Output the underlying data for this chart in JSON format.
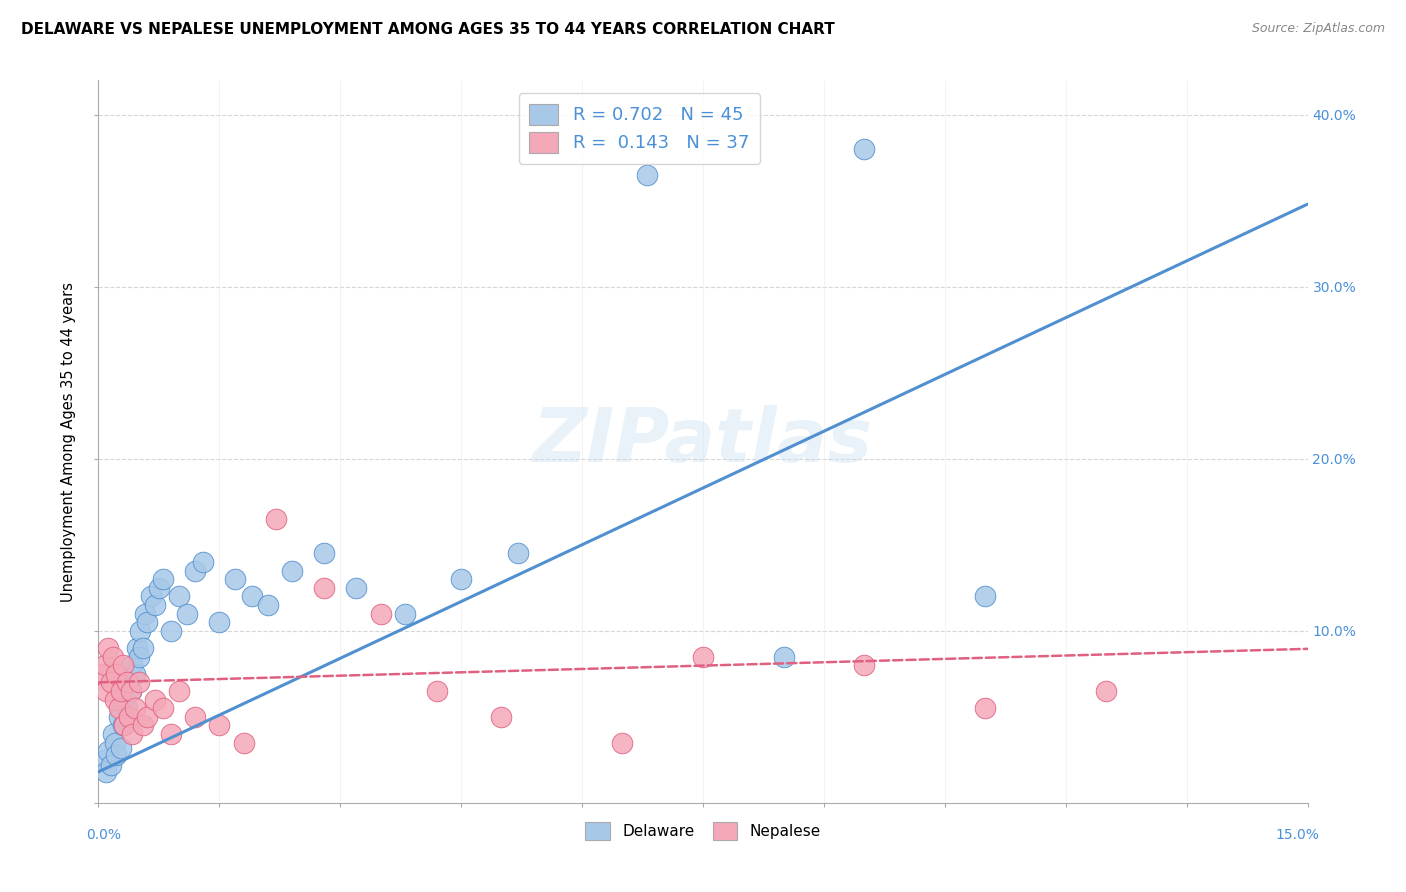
{
  "title": "DELAWARE VS NEPALESE UNEMPLOYMENT AMONG AGES 35 TO 44 YEARS CORRELATION CHART",
  "source": "Source: ZipAtlas.com",
  "ylabel": "Unemployment Among Ages 35 to 44 years",
  "xlim": [
    0.0,
    15.0
  ],
  "ylim": [
    0.0,
    42.0
  ],
  "watermark": "ZIPatlas",
  "delaware_R": 0.702,
  "delaware_N": 45,
  "nepalese_R": 0.143,
  "nepalese_N": 37,
  "delaware_color": "#a8c8e8",
  "nepalese_color": "#f4a8b8",
  "delaware_line_color": "#5090d0",
  "nepalese_line_color": "#e06080",
  "legend_text_color": "#4a90d9",
  "axis_label_color": "#4a90d9",
  "background": "#ffffff",
  "grid_color_h": "#cccccc",
  "grid_color_v": "#e8e8e8",
  "del_x": [
    0.08,
    0.1,
    0.12,
    0.15,
    0.18,
    0.2,
    0.22,
    0.25,
    0.28,
    0.3,
    0.32,
    0.35,
    0.38,
    0.4,
    0.42,
    0.45,
    0.48,
    0.5,
    0.52,
    0.55,
    0.58,
    0.6,
    0.65,
    0.7,
    0.75,
    0.8,
    0.9,
    1.0,
    1.1,
    1.2,
    1.3,
    1.5,
    1.7,
    1.9,
    2.1,
    2.4,
    2.8,
    3.2,
    3.8,
    4.5,
    5.2,
    6.8,
    8.5,
    9.5,
    11.0
  ],
  "del_y": [
    2.5,
    1.8,
    3.0,
    2.2,
    4.0,
    3.5,
    2.8,
    5.0,
    3.2,
    4.5,
    6.0,
    5.5,
    7.0,
    6.5,
    8.0,
    7.5,
    9.0,
    8.5,
    10.0,
    9.0,
    11.0,
    10.5,
    12.0,
    11.5,
    12.5,
    13.0,
    10.0,
    12.0,
    11.0,
    13.5,
    14.0,
    10.5,
    13.0,
    12.0,
    11.5,
    13.5,
    14.5,
    12.5,
    11.0,
    13.0,
    14.5,
    36.5,
    8.5,
    38.0,
    12.0
  ],
  "nep_x": [
    0.05,
    0.08,
    0.1,
    0.12,
    0.15,
    0.18,
    0.2,
    0.22,
    0.25,
    0.28,
    0.3,
    0.32,
    0.35,
    0.38,
    0.4,
    0.42,
    0.45,
    0.5,
    0.55,
    0.6,
    0.7,
    0.8,
    0.9,
    1.0,
    1.2,
    1.5,
    1.8,
    2.2,
    2.8,
    3.5,
    4.2,
    5.0,
    6.5,
    7.5,
    9.5,
    11.0,
    12.5
  ],
  "nep_y": [
    7.5,
    8.0,
    6.5,
    9.0,
    7.0,
    8.5,
    6.0,
    7.5,
    5.5,
    6.5,
    8.0,
    4.5,
    7.0,
    5.0,
    6.5,
    4.0,
    5.5,
    7.0,
    4.5,
    5.0,
    6.0,
    5.5,
    4.0,
    6.5,
    5.0,
    4.5,
    3.5,
    16.5,
    12.5,
    11.0,
    6.5,
    5.0,
    3.5,
    8.5,
    8.0,
    5.5,
    6.5
  ]
}
